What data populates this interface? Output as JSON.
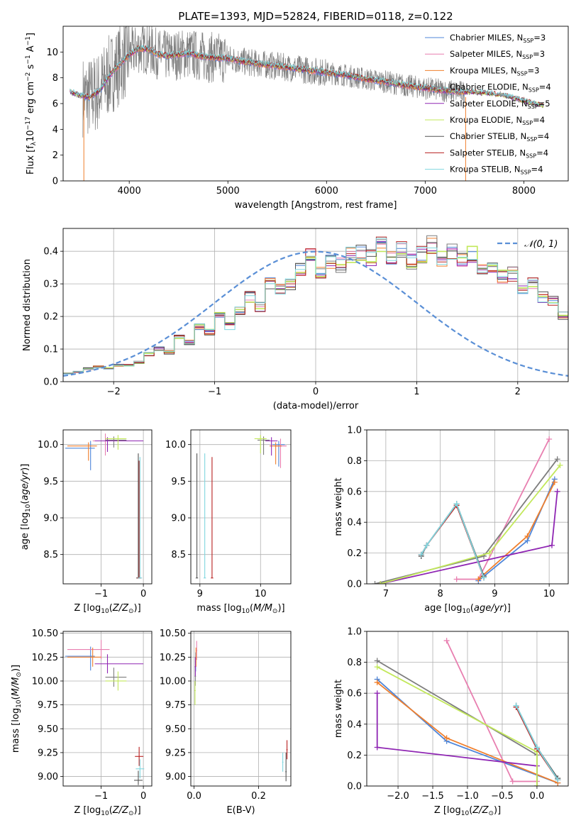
{
  "figure": {
    "title": "PLATE=1393, MJD=52824, FIBERID=0118, z=0.122"
  },
  "colors": {
    "grid": "#b0b0b0",
    "Chabrier MILES": "#4f86d9",
    "Salpeter MILES": "#e87fb0",
    "Kroupa MILES": "#f07f2c",
    "Chabrier ELODIE": "#7d7d7d",
    "Salpeter ELODIE": "#8f26b3",
    "Kroupa ELODIE": "#c2e85a",
    "Chabrier STELIB": "#545454",
    "Salpeter STELIB": "#b82020",
    "Kroupa STELIB": "#7fd6df",
    "normal_curve": "#5a8fd6",
    "data_spectrum": "#7f7f7f"
  },
  "chart_data": [
    {
      "id": "spectrum",
      "type": "line",
      "title": "PLATE=1393, MJD=52824, FIBERID=0118, z=0.122",
      "xlabel": "wavelength [Angstrom, rest frame]",
      "ylabel": "Flux [f_λ 10^-17 erg cm^-2 s^-1 A^-1]",
      "xlim": [
        3330,
        8450
      ],
      "ylim": [
        0,
        12
      ],
      "xticks": [
        "4000",
        "5000",
        "6000",
        "7000",
        "8000"
      ],
      "yticks": [
        "0",
        "2",
        "4",
        "6",
        "8",
        "10"
      ],
      "grid": false,
      "legend": "top-right",
      "legend_entries": [
        "Chabrier MILES, N_SSP=3",
        "Salpeter MILES, N_SSP=3",
        "Kroupa MILES, N_SSP=3",
        "Chabrier ELODIE, N_SSP=4",
        "Salpeter ELODIE, N_SSP=5",
        "Kroupa ELODIE, N_SSP=4",
        "Chabrier STELIB, N_SSP=4",
        "Salpeter STELIB, N_SSP=4",
        "Kroupa STELIB, N_SSP=4"
      ],
      "model_continuum": {
        "x": [
          3400,
          3500,
          3600,
          3700,
          3800,
          3900,
          4000,
          4100,
          4200,
          4300,
          4400,
          4500,
          4600,
          4700,
          4800,
          5000,
          5200,
          5400,
          5600,
          5800,
          6000,
          6200,
          6400,
          6600,
          6800,
          7000,
          7200,
          7400,
          7600,
          7800,
          8000,
          8200
        ],
        "y": [
          6.9,
          6.6,
          6.5,
          7.0,
          8.2,
          9.0,
          9.8,
          10.3,
          10.2,
          9.8,
          9.7,
          9.8,
          9.9,
          9.7,
          9.6,
          9.5,
          9.2,
          9.0,
          8.8,
          8.6,
          8.4,
          8.2,
          7.9,
          7.7,
          7.4,
          7.2,
          7.0,
          6.9,
          6.8,
          6.6,
          6.2,
          5.8
        ]
      },
      "data_noise": "large scatter 3500-5000 A, reaching 0-12; moderate scatter 5000-7500 A"
    },
    {
      "id": "residuals",
      "type": "line",
      "xlabel": "(data-model)/error",
      "ylabel": "Normed distribution",
      "xlim": [
        -2.5,
        2.5
      ],
      "ylim": [
        0,
        0.47
      ],
      "xticks": [
        "−2",
        "−1",
        "0",
        "1",
        "2"
      ],
      "yticks": [
        "0.0",
        "0.1",
        "0.2",
        "0.3",
        "0.4"
      ],
      "grid": true,
      "legend": "top-right",
      "legend_entries": [
        "𝒩(0, 1)"
      ],
      "bin_width": 0.1,
      "bin_start": -2.5,
      "histogram_envelope": [
        0.025,
        0.03,
        0.04,
        0.045,
        0.04,
        0.05,
        0.05,
        0.06,
        0.085,
        0.1,
        0.09,
        0.14,
        0.12,
        0.17,
        0.15,
        0.2,
        0.17,
        0.22,
        0.26,
        0.23,
        0.3,
        0.28,
        0.3,
        0.34,
        0.39,
        0.34,
        0.37,
        0.36,
        0.39,
        0.4,
        0.38,
        0.42,
        0.38,
        0.41,
        0.37,
        0.39,
        0.42,
        0.38,
        0.4,
        0.37,
        0.39,
        0.35,
        0.36,
        0.32,
        0.33,
        0.28,
        0.3,
        0.26,
        0.25,
        0.2,
        0.22,
        0.18,
        0.17,
        0.14,
        0.14,
        0.11,
        0.12,
        0.08,
        0.07,
        0.06,
        0.05,
        0.045,
        0.04,
        0.035,
        0.03,
        0.025,
        0.03,
        0.025,
        0.02,
        0.025,
        0.02,
        0.02
      ],
      "normal_curve": "N(0,1) pdf, dashed"
    },
    {
      "id": "age_vs_Z",
      "type": "scatter",
      "xlabel": "Z [log10(Z/Z⊙)]",
      "ylabel": "age [log10(age/yr)]",
      "xlim": [
        -1.9,
        0.2
      ],
      "ylim": [
        8.1,
        10.2
      ],
      "xticks": [
        "−1",
        "0"
      ],
      "yticks": [
        "8.5",
        "9.0",
        "9.5",
        "10.0"
      ],
      "grid": true,
      "points": [
        {
          "series": "Chabrier MILES",
          "x": -1.25,
          "y": 9.95,
          "xerr": [
            0.6,
            0.1
          ],
          "yerr": [
            0.3,
            0.1
          ]
        },
        {
          "series": "Salpeter MILES",
          "x": -0.9,
          "y": 10.05,
          "xerr": [
            0.3,
            0.2
          ],
          "yerr": [
            0.2,
            0.1
          ]
        },
        {
          "series": "Kroupa MILES",
          "x": -1.3,
          "y": 9.98,
          "xerr": [
            0.5,
            0.2
          ],
          "yerr": [
            0.2,
            0.05
          ]
        },
        {
          "series": "Chabrier ELODIE",
          "x": -0.7,
          "y": 10.06,
          "xerr": [
            0.2,
            0.3
          ],
          "yerr": [
            0.1,
            0.05
          ]
        },
        {
          "series": "Salpeter ELODIE",
          "x": -0.85,
          "y": 10.05,
          "xerr": [
            0.3,
            0.85
          ],
          "yerr": [
            0.15,
            0.05
          ]
        },
        {
          "series": "Kroupa ELODIE",
          "x": -0.6,
          "y": 10.08,
          "xerr": [
            0.3,
            0.2
          ],
          "yerr": [
            0.15,
            0.05
          ]
        },
        {
          "series": "Chabrier STELIB",
          "x": -0.12,
          "y": 8.18,
          "xerr": [
            0.05,
            0.05
          ],
          "yerr": [
            0.0,
            1.7
          ]
        },
        {
          "series": "Salpeter STELIB",
          "x": -0.1,
          "y": 8.18,
          "xerr": [
            0.05,
            0.05
          ],
          "yerr": [
            0.0,
            1.6
          ]
        },
        {
          "series": "Kroupa STELIB",
          "x": -0.08,
          "y": 8.18,
          "xerr": [
            0.05,
            0.05
          ],
          "yerr": [
            0.0,
            1.65
          ]
        }
      ]
    },
    {
      "id": "age_vs_mass",
      "type": "scatter",
      "xlabel": "mass [log10(M/M⊙)]",
      "ylabel": "",
      "xlim": [
        8.85,
        10.5
      ],
      "ylim": [
        8.1,
        10.2
      ],
      "xticks": [
        "9",
        "10"
      ],
      "yticks": [
        "8.5",
        "9.0",
        "9.5",
        "10.0"
      ],
      "grid": true,
      "points": [
        {
          "series": "Chabrier MILES",
          "x": 10.3,
          "y": 10.0,
          "xerr": [
            0.1,
            0.1
          ],
          "yerr": [
            0.3,
            0.05
          ]
        },
        {
          "series": "Salpeter MILES",
          "x": 10.33,
          "y": 9.98,
          "xerr": [
            0.1,
            0.1
          ],
          "yerr": [
            0.3,
            0.1
          ]
        },
        {
          "series": "Kroupa MILES",
          "x": 10.25,
          "y": 9.98,
          "xerr": [
            0.1,
            0.1
          ],
          "yerr": [
            0.25,
            0.05
          ]
        },
        {
          "series": "Chabrier ELODIE",
          "x": 10.05,
          "y": 10.06,
          "xerr": [
            0.1,
            0.1
          ],
          "yerr": [
            0.2,
            0.05
          ]
        },
        {
          "series": "Salpeter ELODIE",
          "x": 10.18,
          "y": 10.05,
          "xerr": [
            0.1,
            0.1
          ],
          "yerr": [
            0.2,
            0.05
          ]
        },
        {
          "series": "Kroupa ELODIE",
          "x": 10.0,
          "y": 10.08,
          "xerr": [
            0.1,
            0.1
          ],
          "yerr": [
            0.2,
            0.05
          ]
        },
        {
          "series": "Chabrier STELIB",
          "x": 8.95,
          "y": 8.18,
          "xerr": [
            0.02,
            0.02
          ],
          "yerr": [
            0.0,
            1.7
          ]
        },
        {
          "series": "Salpeter STELIB",
          "x": 9.2,
          "y": 8.18,
          "xerr": [
            0.02,
            0.02
          ],
          "yerr": [
            0.0,
            1.65
          ]
        },
        {
          "series": "Kroupa STELIB",
          "x": 9.08,
          "y": 8.18,
          "xerr": [
            0.02,
            0.02
          ],
          "yerr": [
            0.0,
            1.7
          ]
        }
      ]
    },
    {
      "id": "weight_vs_age",
      "type": "line",
      "xlabel": "age [log10(age/yr)]",
      "ylabel": "mass weight",
      "xlim": [
        6.65,
        10.35
      ],
      "ylim": [
        0,
        1
      ],
      "xticks": [
        "7",
        "8",
        "9",
        "10"
      ],
      "yticks": [
        "0.0",
        "0.2",
        "0.4",
        "0.6",
        "0.8",
        "1.0"
      ],
      "grid": true,
      "series": [
        {
          "name": "Chabrier MILES",
          "x": [
            8.7,
            9.6,
            10.1
          ],
          "y": [
            0.02,
            0.28,
            0.68
          ]
        },
        {
          "name": "Salpeter MILES",
          "x": [
            8.3,
            8.7,
            10.0
          ],
          "y": [
            0.03,
            0.03,
            0.94
          ]
        },
        {
          "name": "Kroupa MILES",
          "x": [
            8.7,
            9.6,
            10.1
          ],
          "y": [
            0.03,
            0.31,
            0.66
          ]
        },
        {
          "name": "Chabrier ELODIE",
          "x": [
            6.8,
            8.8,
            10.15
          ],
          "y": [
            0.0,
            0.18,
            0.81
          ]
        },
        {
          "name": "Salpeter ELODIE",
          "x": [
            6.9,
            10.05,
            10.15
          ],
          "y": [
            0.0,
            0.25,
            0.6
          ]
        },
        {
          "name": "Kroupa ELODIE",
          "x": [
            6.9,
            8.9,
            10.2
          ],
          "y": [
            0.0,
            0.2,
            0.77
          ]
        },
        {
          "name": "Chabrier STELIB",
          "x": [
            7.65,
            7.75,
            8.3,
            8.8
          ],
          "y": [
            0.18,
            0.25,
            0.52,
            0.05
          ]
        },
        {
          "name": "Salpeter STELIB",
          "x": [
            7.65,
            7.75,
            8.3,
            8.8
          ],
          "y": [
            0.19,
            0.25,
            0.51,
            0.04
          ]
        },
        {
          "name": "Kroupa STELIB",
          "x": [
            7.65,
            7.75,
            8.3,
            8.8
          ],
          "y": [
            0.19,
            0.25,
            0.52,
            0.04
          ]
        }
      ]
    },
    {
      "id": "mass_vs_Z",
      "type": "scatter",
      "xlabel": "Z [log10(Z/Z⊙)]",
      "ylabel": "mass [log10(M/M⊙)]",
      "xlim": [
        -1.9,
        0.2
      ],
      "ylim": [
        8.9,
        10.52
      ],
      "xticks": [
        "−1",
        "0"
      ],
      "yticks": [
        "9.00",
        "9.25",
        "9.50",
        "9.75",
        "10.00",
        "10.25",
        "10.50"
      ],
      "grid": true,
      "points": [
        {
          "series": "Chabrier MILES",
          "x": -1.25,
          "y": 10.26,
          "xerr": [
            0.6,
            0.1
          ],
          "yerr": [
            0.15,
            0.1
          ]
        },
        {
          "series": "Salpeter MILES",
          "x": -1.0,
          "y": 10.33,
          "xerr": [
            0.8,
            0.2
          ],
          "yerr": [
            0.1,
            0.1
          ]
        },
        {
          "series": "Kroupa MILES",
          "x": -1.2,
          "y": 10.25,
          "xerr": [
            0.6,
            0.2
          ],
          "yerr": [
            0.1,
            0.1
          ]
        },
        {
          "series": "Chabrier ELODIE",
          "x": -0.7,
          "y": 10.04,
          "xerr": [
            0.2,
            0.3
          ],
          "yerr": [
            0.1,
            0.1
          ]
        },
        {
          "series": "Salpeter ELODIE",
          "x": -0.85,
          "y": 10.18,
          "xerr": [
            0.3,
            0.85
          ],
          "yerr": [
            0.1,
            0.1
          ]
        },
        {
          "series": "Kroupa ELODIE",
          "x": -0.6,
          "y": 10.0,
          "xerr": [
            0.3,
            0.2
          ],
          "yerr": [
            0.1,
            0.1
          ]
        },
        {
          "series": "Chabrier STELIB",
          "x": -0.12,
          "y": 8.96,
          "xerr": [
            0.1,
            0.1
          ],
          "yerr": [
            0.05,
            0.1
          ]
        },
        {
          "series": "Salpeter STELIB",
          "x": -0.1,
          "y": 9.21,
          "xerr": [
            0.1,
            0.1
          ],
          "yerr": [
            0.1,
            0.1
          ]
        },
        {
          "series": "Kroupa STELIB",
          "x": -0.08,
          "y": 9.08,
          "xerr": [
            0.1,
            0.1
          ],
          "yerr": [
            0.1,
            0.1
          ]
        }
      ]
    },
    {
      "id": "mass_vs_EBV",
      "type": "scatter",
      "xlabel": "E(B-V)",
      "ylabel": "",
      "xlim": [
        -0.01,
        0.3
      ],
      "ylim": [
        8.9,
        10.52
      ],
      "xticks": [
        "0.0",
        "0.2"
      ],
      "yticks": [
        "9.00",
        "9.25",
        "9.50",
        "9.75",
        "10.00",
        "10.25",
        "10.50"
      ],
      "grid": true,
      "points": [
        {
          "series": "Chabrier MILES",
          "x": 0.005,
          "y": 10.2,
          "xerr": [
            0.002,
            0.002
          ],
          "yerr": [
            0.1,
            0.1
          ]
        },
        {
          "series": "Salpeter MILES",
          "x": 0.008,
          "y": 10.32,
          "xerr": [
            0.002,
            0.002
          ],
          "yerr": [
            0.1,
            0.1
          ]
        },
        {
          "series": "Kroupa MILES",
          "x": 0.006,
          "y": 10.25,
          "xerr": [
            0.002,
            0.002
          ],
          "yerr": [
            0.1,
            0.1
          ]
        },
        {
          "series": "Chabrier ELODIE",
          "x": 0.004,
          "y": 10.05,
          "xerr": [
            0.002,
            0.002
          ],
          "yerr": [
            0.1,
            0.1
          ]
        },
        {
          "series": "Salpeter ELODIE",
          "x": 0.004,
          "y": 10.15,
          "xerr": [
            0.002,
            0.002
          ],
          "yerr": [
            0.1,
            0.1
          ]
        },
        {
          "series": "Kroupa ELODIE",
          "x": 0.003,
          "y": 9.9,
          "xerr": [
            0.002,
            0.002
          ],
          "yerr": [
            0.15,
            0.1
          ]
        },
        {
          "series": "Chabrier STELIB",
          "x": 0.285,
          "y": 9.05,
          "xerr": [
            0.002,
            0.002
          ],
          "yerr": [
            0.1,
            0.2
          ]
        },
        {
          "series": "Salpeter STELIB",
          "x": 0.288,
          "y": 9.28,
          "xerr": [
            0.002,
            0.002
          ],
          "yerr": [
            0.1,
            0.1
          ]
        },
        {
          "series": "Kroupa STELIB",
          "x": 0.275,
          "y": 9.15,
          "xerr": [
            0.002,
            0.002
          ],
          "yerr": [
            0.1,
            0.1
          ]
        }
      ]
    },
    {
      "id": "weight_vs_Z",
      "type": "line",
      "xlabel": "Z [log10(Z/Z⊙)]",
      "ylabel": "mass weight",
      "xlim": [
        -2.45,
        0.45
      ],
      "ylim": [
        0,
        1
      ],
      "xticks": [
        "−2.0",
        "−1.5",
        "−1.0",
        "−0.5",
        "0.0"
      ],
      "yticks": [
        "0.0",
        "0.2",
        "0.4",
        "0.6",
        "0.8",
        "1.0"
      ],
      "grid": true,
      "series": [
        {
          "name": "Chabrier MILES",
          "x": [
            -2.3,
            -1.3,
            0.3
          ],
          "y": [
            0.69,
            0.29,
            0.02
          ]
        },
        {
          "name": "Salpeter MILES",
          "x": [
            -1.3,
            -0.35,
            0.0
          ],
          "y": [
            0.94,
            0.03,
            0.03
          ]
        },
        {
          "name": "Kroupa MILES",
          "x": [
            -2.3,
            -1.3,
            0.3
          ],
          "y": [
            0.67,
            0.31,
            0.02
          ]
        },
        {
          "name": "Chabrier ELODIE",
          "x": [
            -2.3,
            0.0,
            0.0
          ],
          "y": [
            0.81,
            0.2,
            0.0
          ]
        },
        {
          "name": "Salpeter ELODIE",
          "x": [
            -2.3,
            -2.3,
            0.0,
            0.0
          ],
          "y": [
            0.6,
            0.25,
            0.13,
            0.0
          ]
        },
        {
          "name": "Kroupa ELODIE",
          "x": [
            -2.3,
            0.0,
            0.0
          ],
          "y": [
            0.77,
            0.22,
            0.0
          ]
        },
        {
          "name": "Chabrier STELIB",
          "x": [
            -0.3,
            0.0,
            0.3
          ],
          "y": [
            0.52,
            0.25,
            0.05
          ]
        },
        {
          "name": "Salpeter STELIB",
          "x": [
            -0.3,
            0.0,
            0.3
          ],
          "y": [
            0.51,
            0.24,
            0.04
          ]
        },
        {
          "name": "Kroupa STELIB",
          "x": [
            -0.3,
            0.0,
            0.3
          ],
          "y": [
            0.52,
            0.25,
            0.04
          ]
        }
      ]
    }
  ]
}
